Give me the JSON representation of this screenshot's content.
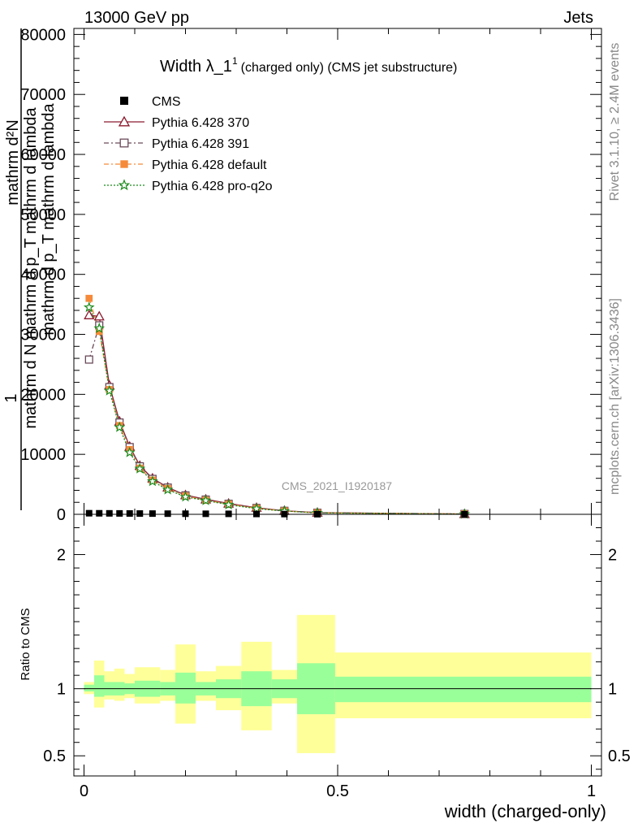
{
  "header": {
    "left": "13000 GeV pp",
    "right": "Jets"
  },
  "side_labels": {
    "rivet": "Rivet 3.1.10, ≥ 2.4M events",
    "site": "mcplots.cern.ch [arXiv:1306.3436]"
  },
  "chart_data": {
    "type": "line",
    "title_main": "Width λ_1",
    "title_sup": "1",
    "title_rest": "(charged only) (CMS jet substructure)",
    "watermark": "CMS_2021_I1920187",
    "ylabel_lines": [
      "mathrm d²N",
      "1",
      "mathrm d N mathrm d p_T mathrm d lambda",
      "mathrm d p_T mathrm d lambda"
    ],
    "xlabel": "width (charged-only)",
    "ratio_ylabel": "Ratio to CMS",
    "xlim": [
      -0.02,
      1.02
    ],
    "ylim": [
      0,
      81000
    ],
    "ratio_ylim": [
      0.35,
      2.3
    ],
    "x_ticks": [
      {
        "v": 0,
        "label": "0"
      },
      {
        "v": 0.5,
        "label": "0.5"
      },
      {
        "v": 1,
        "label": "1"
      }
    ],
    "y_ticks": [
      {
        "v": 0,
        "label": "0"
      },
      {
        "v": 10000,
        "label": "10000"
      },
      {
        "v": 20000,
        "label": "20000"
      },
      {
        "v": 30000,
        "label": "30000"
      },
      {
        "v": 40000,
        "label": "40000"
      },
      {
        "v": 50000,
        "label": "50000"
      },
      {
        "v": 60000,
        "label": "60000"
      },
      {
        "v": 70000,
        "label": "70000"
      },
      {
        "v": 80000,
        "label": "80000"
      }
    ],
    "ratio_ticks": [
      {
        "v": 0.5,
        "label": "0.5"
      },
      {
        "v": 1,
        "label": "1"
      },
      {
        "v": 2,
        "label": "2"
      }
    ],
    "x": [
      0.01,
      0.03,
      0.05,
      0.07,
      0.09,
      0.11,
      0.135,
      0.165,
      0.2,
      0.24,
      0.285,
      0.34,
      0.395,
      0.46,
      0.75
    ],
    "cms_values": [
      180,
      170,
      160,
      150,
      140,
      130,
      120,
      110,
      100,
      90,
      80,
      60,
      40,
      20,
      5
    ],
    "series": [
      {
        "name": "Pythia 6.428 370",
        "color": "#8b1a2e",
        "marker": "triangle-open",
        "dash": "",
        "values": [
          33200,
          33000,
          21500,
          15500,
          11300,
          8100,
          6000,
          4500,
          3200,
          2500,
          1800,
          1100,
          600,
          280,
          60
        ]
      },
      {
        "name": "Pythia 6.428 391",
        "color": "#6b4a5a",
        "marker": "square-open",
        "dash": "6,3,2,3",
        "values": [
          25800,
          31500,
          21200,
          15300,
          11200,
          8000,
          5900,
          4450,
          3150,
          2450,
          1750,
          1050,
          580,
          260,
          55
        ]
      },
      {
        "name": "Pythia 6.428 default",
        "color": "#f58a3a",
        "marker": "square-filled",
        "dash": "6,3,2,3",
        "values": [
          36000,
          30500,
          20800,
          14800,
          10800,
          7700,
          5700,
          4300,
          3050,
          2350,
          1700,
          1000,
          560,
          250,
          50
        ]
      },
      {
        "name": "Pythia 6.428 pro-q2o",
        "color": "#1a8a1a",
        "marker": "star",
        "dash": "2,2",
        "values": [
          34500,
          31000,
          20600,
          14500,
          10300,
          7600,
          5500,
          4100,
          2900,
          2300,
          1600,
          950,
          540,
          240,
          45
        ]
      }
    ],
    "ratio_bins": [
      {
        "lo": 0.0,
        "hi": 0.02,
        "g_lo": 0.98,
        "g_hi": 1.03,
        "y_lo": 0.96,
        "y_hi": 1.05
      },
      {
        "lo": 0.02,
        "hi": 0.04,
        "g_lo": 0.94,
        "g_hi": 1.1,
        "y_lo": 0.86,
        "y_hi": 1.21
      },
      {
        "lo": 0.04,
        "hi": 0.06,
        "g_lo": 0.95,
        "g_hi": 1.05,
        "y_lo": 0.92,
        "y_hi": 1.13
      },
      {
        "lo": 0.06,
        "hi": 0.08,
        "g_lo": 0.95,
        "g_hi": 1.05,
        "y_lo": 0.91,
        "y_hi": 1.15
      },
      {
        "lo": 0.08,
        "hi": 0.1,
        "g_lo": 0.96,
        "g_hi": 1.04,
        "y_lo": 0.93,
        "y_hi": 1.11
      },
      {
        "lo": 0.1,
        "hi": 0.12,
        "g_lo": 0.94,
        "g_hi": 1.06,
        "y_lo": 0.89,
        "y_hi": 1.16
      },
      {
        "lo": 0.12,
        "hi": 0.15,
        "g_lo": 0.94,
        "g_hi": 1.06,
        "y_lo": 0.89,
        "y_hi": 1.16
      },
      {
        "lo": 0.15,
        "hi": 0.18,
        "g_lo": 0.95,
        "g_hi": 1.05,
        "y_lo": 0.91,
        "y_hi": 1.14
      },
      {
        "lo": 0.18,
        "hi": 0.22,
        "g_lo": 0.89,
        "g_hi": 1.12,
        "y_lo": 0.74,
        "y_hi": 1.33
      },
      {
        "lo": 0.22,
        "hi": 0.26,
        "g_lo": 0.95,
        "g_hi": 1.05,
        "y_lo": 0.91,
        "y_hi": 1.13
      },
      {
        "lo": 0.26,
        "hi": 0.31,
        "g_lo": 0.93,
        "g_hi": 1.07,
        "y_lo": 0.84,
        "y_hi": 1.17
      },
      {
        "lo": 0.31,
        "hi": 0.37,
        "g_lo": 0.87,
        "g_hi": 1.13,
        "y_lo": 0.69,
        "y_hi": 1.35
      },
      {
        "lo": 0.37,
        "hi": 0.42,
        "g_lo": 0.93,
        "g_hi": 1.07,
        "y_lo": 0.89,
        "y_hi": 1.14
      },
      {
        "lo": 0.42,
        "hi": 0.495,
        "g_lo": 0.81,
        "g_hi": 1.19,
        "y_lo": 0.52,
        "y_hi": 1.55
      },
      {
        "lo": 0.495,
        "hi": 1.0,
        "g_lo": 0.9,
        "g_hi": 1.09,
        "y_lo": 0.78,
        "y_hi": 1.27
      }
    ],
    "band_colors": {
      "yellow": "#ffff99",
      "green": "#99ff99"
    }
  }
}
